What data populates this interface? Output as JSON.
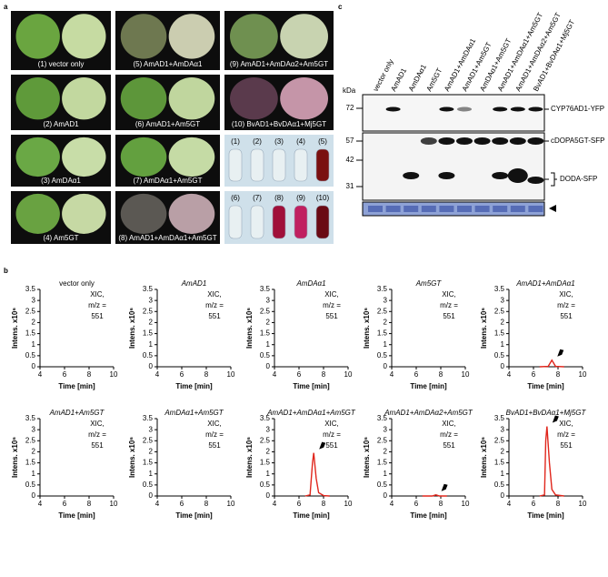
{
  "panel_labels": [
    "a",
    "b",
    "c"
  ],
  "leaf_photos": [
    "(1) vector only",
    "(2) AmAD1",
    "(3) AmDAα1",
    "(4) Am5GT",
    "(5) AmAD1+AmDAα1",
    "(6) AmAD1+Am5GT",
    "(7) AmDAα1+Am5GT",
    "(8) AmAD1+AmDAα1+Am5GT",
    "(9) AmAD1+AmDAα2+Am5GT",
    "(10) BvAD1+BvDAα1+Mj5GT"
  ],
  "tube_labels": [
    "(1)",
    "(2)",
    "(3)",
    "(4)",
    "(5)",
    "(6)",
    "(7)",
    "(8)",
    "(9)",
    "(10)"
  ],
  "blot": {
    "kda_label": "kDa",
    "markers": [
      "72",
      "57",
      "42",
      "31"
    ],
    "lanes": [
      "vector only",
      "AmAD1",
      "AmDAα1",
      "Am5GT",
      "AmAD1+AmDAα1",
      "AmAD1+Am5GT",
      "AmDAα1+Am5GT",
      "AmAD1+AmDAα1+Am5GT",
      "AmAD1+AmDAα2+Am5GT",
      "BvAD1+BvDAα1+Mj5GT"
    ],
    "band_labels": [
      "CYP76AD1-YFP",
      "cDOPA5GT-SFP",
      "DODA-SFP"
    ]
  },
  "chart_data": [
    {
      "type": "line",
      "title": "vector only",
      "x_label": "Time [min]",
      "y_label": "Intens. x10⁶",
      "annotation": [
        "XIC,",
        "m/z =",
        "551"
      ],
      "xlim": [
        4,
        10
      ],
      "xticks": [
        4,
        6,
        8,
        10
      ],
      "ylim": [
        0,
        3.5
      ],
      "yticks": [
        0,
        0.5,
        1,
        1.5,
        2,
        2.5,
        3,
        3.5
      ],
      "series": []
    },
    {
      "type": "line",
      "title": "AmAD1",
      "x_label": "Time [min]",
      "y_label": "Intens. x10⁶",
      "annotation": [
        "XIC,",
        "m/z =",
        "551"
      ],
      "xlim": [
        4,
        10
      ],
      "xticks": [
        4,
        6,
        8,
        10
      ],
      "ylim": [
        0,
        3.5
      ],
      "yticks": [
        0,
        0.5,
        1,
        1.5,
        2,
        2.5,
        3,
        3.5
      ],
      "series": []
    },
    {
      "type": "line",
      "title": "AmDAα1",
      "x_label": "Time [min]",
      "y_label": "Intens. x10⁶",
      "annotation": [
        "XIC,",
        "m/z =",
        "551"
      ],
      "xlim": [
        4,
        10
      ],
      "xticks": [
        4,
        6,
        8,
        10
      ],
      "ylim": [
        0,
        3.5
      ],
      "yticks": [
        0,
        0.5,
        1,
        1.5,
        2,
        2.5,
        3,
        3.5
      ],
      "series": []
    },
    {
      "type": "line",
      "title": "Am5GT",
      "x_label": "Time [min]",
      "y_label": "Intens. x10⁶",
      "annotation": [
        "XIC,",
        "m/z =",
        "551"
      ],
      "xlim": [
        4,
        10
      ],
      "xticks": [
        4,
        6,
        8,
        10
      ],
      "ylim": [
        0,
        3.5
      ],
      "yticks": [
        0,
        0.5,
        1,
        1.5,
        2,
        2.5,
        3,
        3.5
      ],
      "series": []
    },
    {
      "type": "line",
      "title": "AmAD1+AmDAα1",
      "x_label": "Time [min]",
      "y_label": "Intens. x10⁶",
      "annotation": [
        "XIC,",
        "m/z =",
        "551"
      ],
      "xlim": [
        4,
        10
      ],
      "xticks": [
        4,
        6,
        8,
        10
      ],
      "ylim": [
        0,
        3.5
      ],
      "yticks": [
        0,
        0.5,
        1,
        1.5,
        2,
        2.5,
        3,
        3.5
      ],
      "series": [
        {
          "color": "#e0261c",
          "x": [
            6.5,
            7.2,
            7.5,
            7.8,
            8.5
          ],
          "values": [
            0,
            0.02,
            0.3,
            0.02,
            0
          ]
        }
      ]
    },
    {
      "type": "line",
      "title": "AmAD1+Am5GT",
      "x_label": "Time [min]",
      "y_label": "Intens. x10⁶",
      "annotation": [
        "XIC,",
        "m/z =",
        "551"
      ],
      "xlim": [
        4,
        10
      ],
      "xticks": [
        4,
        6,
        8,
        10
      ],
      "ylim": [
        0,
        3.5
      ],
      "yticks": [
        0,
        0.5,
        1,
        1.5,
        2,
        2.5,
        3,
        3.5
      ],
      "series": []
    },
    {
      "type": "line",
      "title": "AmDAα1+Am5GT",
      "x_label": "Time [min]",
      "y_label": "Intens. x10⁶",
      "annotation": [
        "XIC,",
        "m/z =",
        "551"
      ],
      "xlim": [
        4,
        10
      ],
      "xticks": [
        4,
        6,
        8,
        10
      ],
      "ylim": [
        0,
        3.5
      ],
      "yticks": [
        0,
        0.5,
        1,
        1.5,
        2,
        2.5,
        3,
        3.5
      ],
      "series": []
    },
    {
      "type": "line",
      "title": "AmAD1+AmDAα1+Am5GT",
      "x_label": "Time [min]",
      "y_label": "Intens. x10⁶",
      "annotation": [
        "XIC,",
        "m/z =",
        "551"
      ],
      "xlim": [
        4,
        10
      ],
      "xticks": [
        4,
        6,
        8,
        10
      ],
      "ylim": [
        0,
        3.5
      ],
      "yticks": [
        0,
        0.5,
        1,
        1.5,
        2,
        2.5,
        3,
        3.5
      ],
      "series": [
        {
          "color": "#e0261c",
          "x": [
            6.5,
            6.9,
            7.1,
            7.2,
            7.4,
            7.6,
            8,
            8.5
          ],
          "values": [
            0,
            0.05,
            1.5,
            1.95,
            0.8,
            0.15,
            0.02,
            0
          ]
        }
      ]
    },
    {
      "type": "line",
      "title": "AmAD1+AmDAα2+Am5GT",
      "x_label": "Time [min]",
      "y_label": "Intens. x10⁶",
      "annotation": [
        "XIC,",
        "m/z =",
        "551"
      ],
      "xlim": [
        4,
        10
      ],
      "xticks": [
        4,
        6,
        8,
        10
      ],
      "ylim": [
        0,
        3.5
      ],
      "yticks": [
        0,
        0.5,
        1,
        1.5,
        2,
        2.5,
        3,
        3.5
      ],
      "series": [
        {
          "color": "#e0261c",
          "x": [
            6.5,
            7.3,
            7.6,
            7.9,
            8.5
          ],
          "values": [
            0,
            0,
            0.05,
            0,
            0
          ]
        }
      ]
    },
    {
      "type": "line",
      "title": "BvAD1+BvDAα1+Mj5GT",
      "x_label": "Time [min]",
      "y_label": "Intens. x10⁶",
      "annotation": [
        "XIC,",
        "m/z =",
        "551"
      ],
      "xlim": [
        4,
        10
      ],
      "xticks": [
        4,
        6,
        8,
        10
      ],
      "ylim": [
        0,
        3.5
      ],
      "yticks": [
        0,
        0.5,
        1,
        1.5,
        2,
        2.5,
        3,
        3.5
      ],
      "series": [
        {
          "color": "#e0261c",
          "x": [
            6.5,
            6.9,
            7,
            7.1,
            7.3,
            7.5,
            7.8,
            8.5
          ],
          "values": [
            0,
            0.05,
            2.5,
            3.15,
            1.5,
            0.3,
            0.05,
            0
          ]
        }
      ]
    }
  ]
}
